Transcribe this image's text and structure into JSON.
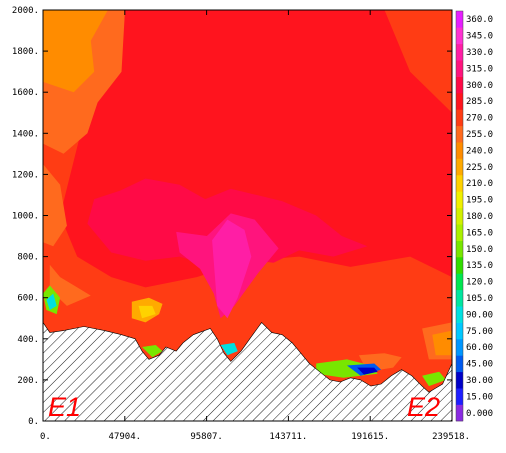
{
  "chart_data": {
    "type": "heatmap",
    "title": "",
    "xlabel": "",
    "ylabel": "",
    "xlim": [
      0,
      239518
    ],
    "ylim": [
      0,
      2000
    ],
    "x_ticks": [
      0,
      47904,
      95807,
      143711,
      191615,
      239518
    ],
    "x_tick_labels": [
      "0.",
      "47904.",
      "95807.",
      "143711.",
      "191615.",
      "239518."
    ],
    "y_ticks": [
      0,
      200,
      400,
      600,
      800,
      1000,
      1200,
      1400,
      1600,
      1800,
      2000
    ],
    "y_tick_labels": [
      "0.",
      "200.",
      "400.",
      "600.",
      "800.",
      "1000.",
      "1200.",
      "1400.",
      "1600.",
      "1800.",
      "2000."
    ],
    "endpoint_labels": {
      "left": "E1",
      "right": "E2"
    },
    "colorbar": {
      "levels": [
        0,
        15,
        30,
        45,
        60,
        75,
        90,
        105,
        120,
        135,
        150,
        165,
        180,
        195,
        210,
        225,
        240,
        255,
        270,
        285,
        300,
        315,
        330,
        345,
        360
      ],
      "labels": [
        "0.000",
        "15.00",
        "30.00",
        "45.00",
        "60.00",
        "75.00",
        "90.00",
        "105.0",
        "120.0",
        "135.0",
        "150.0",
        "165.0",
        "180.0",
        "195.0",
        "210.0",
        "225.0",
        "240.0",
        "255.0",
        "270.0",
        "285.0",
        "300.0",
        "315.0",
        "330.0",
        "345.0",
        "360.0"
      ],
      "colors": [
        "#8a2be2",
        "#1e1eff",
        "#0000c8",
        "#005af0",
        "#0096ff",
        "#00c8ff",
        "#00e0e0",
        "#00e6a0",
        "#00e650",
        "#32dc00",
        "#78e600",
        "#aaf000",
        "#d2f000",
        "#f0f000",
        "#ffd200",
        "#ffaa00",
        "#ff8c00",
        "#ff6a1e",
        "#ff3c14",
        "#ff141e",
        "#ff0a46",
        "#ff147d",
        "#ff1ea5",
        "#ff32d2",
        "#e61eff"
      ]
    },
    "terrain_profile": [
      {
        "x": 0,
        "y": 480
      },
      {
        "x": 4000,
        "y": 430
      },
      {
        "x": 12000,
        "y": 440
      },
      {
        "x": 24000,
        "y": 460
      },
      {
        "x": 36000,
        "y": 440
      },
      {
        "x": 46000,
        "y": 420
      },
      {
        "x": 54000,
        "y": 400
      },
      {
        "x": 58000,
        "y": 340
      },
      {
        "x": 62000,
        "y": 300
      },
      {
        "x": 68000,
        "y": 320
      },
      {
        "x": 72000,
        "y": 360
      },
      {
        "x": 78000,
        "y": 340
      },
      {
        "x": 82000,
        "y": 380
      },
      {
        "x": 88000,
        "y": 420
      },
      {
        "x": 98000,
        "y": 450
      },
      {
        "x": 102000,
        "y": 400
      },
      {
        "x": 106000,
        "y": 330
      },
      {
        "x": 110000,
        "y": 290
      },
      {
        "x": 116000,
        "y": 340
      },
      {
        "x": 122000,
        "y": 410
      },
      {
        "x": 128000,
        "y": 480
      },
      {
        "x": 134000,
        "y": 430
      },
      {
        "x": 140000,
        "y": 420
      },
      {
        "x": 146000,
        "y": 380
      },
      {
        "x": 150000,
        "y": 340
      },
      {
        "x": 156000,
        "y": 280
      },
      {
        "x": 162000,
        "y": 240
      },
      {
        "x": 168000,
        "y": 200
      },
      {
        "x": 174000,
        "y": 190
      },
      {
        "x": 180000,
        "y": 210
      },
      {
        "x": 186000,
        "y": 200
      },
      {
        "x": 192000,
        "y": 170
      },
      {
        "x": 198000,
        "y": 180
      },
      {
        "x": 204000,
        "y": 220
      },
      {
        "x": 210000,
        "y": 250
      },
      {
        "x": 216000,
        "y": 220
      },
      {
        "x": 222000,
        "y": 170
      },
      {
        "x": 226000,
        "y": 140
      },
      {
        "x": 230000,
        "y": 160
      },
      {
        "x": 234000,
        "y": 180
      },
      {
        "x": 239518,
        "y": 280
      }
    ],
    "field_regions": [
      {
        "level": 270,
        "points": [
          [
            0,
            2000
          ],
          [
            239518,
            2000
          ],
          [
            239518,
            0
          ],
          [
            0,
            0
          ]
        ]
      },
      {
        "level": 285,
        "points": [
          [
            30000,
            2000
          ],
          [
            200000,
            2000
          ],
          [
            215000,
            1700
          ],
          [
            239518,
            1500
          ],
          [
            239518,
            700
          ],
          [
            215000,
            800
          ],
          [
            180000,
            750
          ],
          [
            150000,
            800
          ],
          [
            120000,
            780
          ],
          [
            90000,
            700
          ],
          [
            60000,
            650
          ],
          [
            40000,
            700
          ],
          [
            20000,
            800
          ],
          [
            10000,
            1000
          ],
          [
            25000,
            1500
          ],
          [
            30000,
            1800
          ]
        ]
      },
      {
        "level": 255,
        "points": [
          [
            0,
            2000
          ],
          [
            48000,
            2000
          ],
          [
            46000,
            1700
          ],
          [
            32000,
            1550
          ],
          [
            26000,
            1400
          ],
          [
            12000,
            1300
          ],
          [
            0,
            1350
          ]
        ]
      },
      {
        "level": 240,
        "points": [
          [
            0,
            2000
          ],
          [
            38000,
            2000
          ],
          [
            28000,
            1850
          ],
          [
            30000,
            1700
          ],
          [
            18000,
            1600
          ],
          [
            0,
            1650
          ]
        ]
      },
      {
        "level": 255,
        "points": [
          [
            0,
            1250
          ],
          [
            10000,
            1150
          ],
          [
            14000,
            950
          ],
          [
            6000,
            850
          ],
          [
            0,
            870
          ]
        ]
      },
      {
        "level": 300,
        "points": [
          [
            60000,
            1180
          ],
          [
            80000,
            1150
          ],
          [
            95000,
            1080
          ],
          [
            110000,
            1130
          ],
          [
            125000,
            1100
          ],
          [
            140000,
            1070
          ],
          [
            160000,
            1000
          ],
          [
            175000,
            900
          ],
          [
            190000,
            850
          ],
          [
            170000,
            800
          ],
          [
            150000,
            830
          ],
          [
            135000,
            770
          ],
          [
            115000,
            790
          ],
          [
            95000,
            760
          ],
          [
            80000,
            800
          ],
          [
            60000,
            780
          ],
          [
            40000,
            820
          ],
          [
            26000,
            960
          ],
          [
            30000,
            1080
          ],
          [
            45000,
            1120
          ]
        ]
      },
      {
        "level": 315,
        "points": [
          [
            78000,
            920
          ],
          [
            96000,
            900
          ],
          [
            110000,
            1010
          ],
          [
            124000,
            980
          ],
          [
            138000,
            840
          ],
          [
            126000,
            720
          ],
          [
            112000,
            560
          ],
          [
            104000,
            500
          ],
          [
            100000,
            620
          ],
          [
            92000,
            740
          ],
          [
            80000,
            820
          ]
        ]
      },
      {
        "level": 330,
        "points": [
          [
            99000,
            880
          ],
          [
            108000,
            980
          ],
          [
            118000,
            930
          ],
          [
            122000,
            800
          ],
          [
            114000,
            600
          ],
          [
            108000,
            500
          ],
          [
            102000,
            560
          ]
        ]
      },
      {
        "level": 255,
        "points": [
          [
            4000,
            760
          ],
          [
            10000,
            700
          ],
          [
            20000,
            650
          ],
          [
            28000,
            610
          ],
          [
            14000,
            560
          ],
          [
            4000,
            640
          ]
        ]
      },
      {
        "level": 225,
        "points": [
          [
            52000,
            580
          ],
          [
            62000,
            600
          ],
          [
            70000,
            570
          ],
          [
            68000,
            520
          ],
          [
            60000,
            480
          ],
          [
            52000,
            500
          ]
        ]
      },
      {
        "level": 210,
        "points": [
          [
            56000,
            560
          ],
          [
            64000,
            560
          ],
          [
            66000,
            520
          ],
          [
            58000,
            500
          ]
        ]
      },
      {
        "level": 255,
        "points": [
          [
            185000,
            320
          ],
          [
            200000,
            330
          ],
          [
            210000,
            310
          ],
          [
            205000,
            260
          ],
          [
            190000,
            240
          ]
        ]
      },
      {
        "level": 255,
        "points": [
          [
            222000,
            450
          ],
          [
            239518,
            480
          ],
          [
            239518,
            300
          ],
          [
            226000,
            300
          ]
        ]
      },
      {
        "level": 240,
        "points": [
          [
            228000,
            420
          ],
          [
            239518,
            440
          ],
          [
            239518,
            320
          ],
          [
            230000,
            320
          ]
        ]
      }
    ],
    "low_patches": [
      {
        "level": 150,
        "points": [
          [
            0,
            620
          ],
          [
            4000,
            660
          ],
          [
            10000,
            600
          ],
          [
            8000,
            520
          ],
          [
            2000,
            540
          ]
        ]
      },
      {
        "level": 90,
        "points": [
          [
            2000,
            590
          ],
          [
            6000,
            620
          ],
          [
            8000,
            560
          ],
          [
            4000,
            540
          ]
        ]
      },
      {
        "level": 150,
        "points": [
          [
            58000,
            360
          ],
          [
            66000,
            370
          ],
          [
            70000,
            340
          ],
          [
            64000,
            310
          ]
        ]
      },
      {
        "level": 90,
        "points": [
          [
            104000,
            370
          ],
          [
            112000,
            380
          ],
          [
            114000,
            340
          ],
          [
            108000,
            320
          ]
        ]
      },
      {
        "level": 150,
        "points": [
          [
            160000,
            280
          ],
          [
            178000,
            300
          ],
          [
            192000,
            270
          ],
          [
            196000,
            230
          ],
          [
            176000,
            210
          ],
          [
            160000,
            230
          ]
        ]
      },
      {
        "level": 45,
        "points": [
          [
            178000,
            270
          ],
          [
            194000,
            280
          ],
          [
            198000,
            250
          ],
          [
            186000,
            220
          ]
        ]
      },
      {
        "level": 30,
        "points": [
          [
            184000,
            260
          ],
          [
            194000,
            260
          ],
          [
            196000,
            240
          ],
          [
            188000,
            225
          ]
        ]
      },
      {
        "level": 150,
        "points": [
          [
            222000,
            220
          ],
          [
            232000,
            240
          ],
          [
            236000,
            200
          ],
          [
            226000,
            170
          ]
        ]
      }
    ]
  }
}
